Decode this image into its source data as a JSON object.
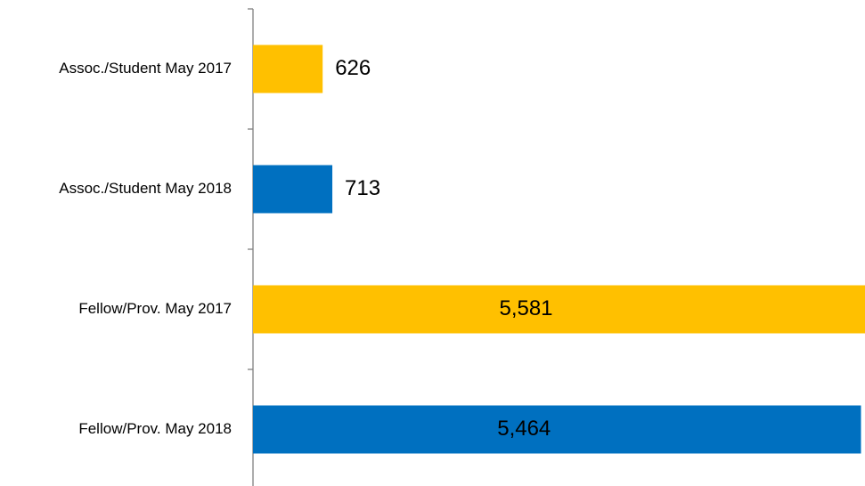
{
  "chart_data": {
    "type": "barh",
    "categories": [
      "Assoc./Student May 2017",
      "Assoc./Student May 2018",
      "Fellow/Prov. May 2017",
      "Fellow/Prov. May 2018"
    ],
    "values": [
      626,
      713,
      5581,
      5464
    ],
    "value_labels": [
      "626",
      "713",
      "5,581",
      "5,464"
    ],
    "colors": [
      "#ffc000",
      "#0070c0",
      "#ffc000",
      "#0070c0"
    ],
    "xlim": [
      0,
      5500
    ]
  }
}
